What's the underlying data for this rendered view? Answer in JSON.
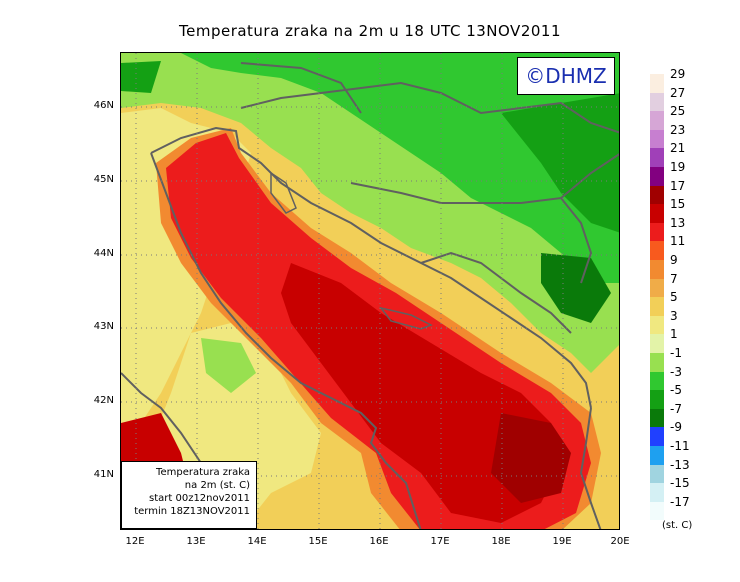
{
  "title": "Temperatura zraka na 2m u 18 UTC 13NOV2011",
  "copyright": "©DHMZ",
  "infobox": {
    "line1": "Temperatura zraka",
    "line2": "na 2m (st. C)",
    "line3": "start 00z12nov2011",
    "line4": "termin 18Z13NOV2011"
  },
  "lat_labels": [
    "46N",
    "45N",
    "44N",
    "43N",
    "42N",
    "41N"
  ],
  "lon_labels": [
    "12E",
    "13E",
    "14E",
    "15E",
    "16E",
    "17E",
    "18E",
    "19E",
    "20E"
  ],
  "legend": {
    "unit": "(st. C)",
    "entries": [
      {
        "label": "29",
        "color": "#fbeee0"
      },
      {
        "label": "27",
        "color": "#e2cfe0"
      },
      {
        "label": "25",
        "color": "#d6a6d6"
      },
      {
        "label": "23",
        "color": "#c77fd0"
      },
      {
        "label": "21",
        "color": "#a040b8"
      },
      {
        "label": "19",
        "color": "#820080"
      },
      {
        "label": "17",
        "color": "#a00000"
      },
      {
        "label": "15",
        "color": "#c80000"
      },
      {
        "label": "13",
        "color": "#ec1c1c"
      },
      {
        "label": "11",
        "color": "#f85a1e"
      },
      {
        "label": "9",
        "color": "#f28a30"
      },
      {
        "label": "7",
        "color": "#f0ac48"
      },
      {
        "label": "5",
        "color": "#f2cf58"
      },
      {
        "label": "3",
        "color": "#f0e880"
      },
      {
        "label": "1",
        "color": "#e3f3a8"
      },
      {
        "label": "-1",
        "color": "#98e050"
      },
      {
        "label": "-3",
        "color": "#30c830"
      },
      {
        "label": "-5",
        "color": "#14a014"
      },
      {
        "label": "-7",
        "color": "#0a7a0a"
      },
      {
        "label": "-9",
        "color": "#2040ff"
      },
      {
        "label": "-11",
        "color": "#1ea0f0"
      },
      {
        "label": "-13",
        "color": "#a0d4e0"
      },
      {
        "label": "-15",
        "color": "#d4f0f4"
      },
      {
        "label": "-17",
        "color": "#f2fcfc"
      }
    ]
  }
}
